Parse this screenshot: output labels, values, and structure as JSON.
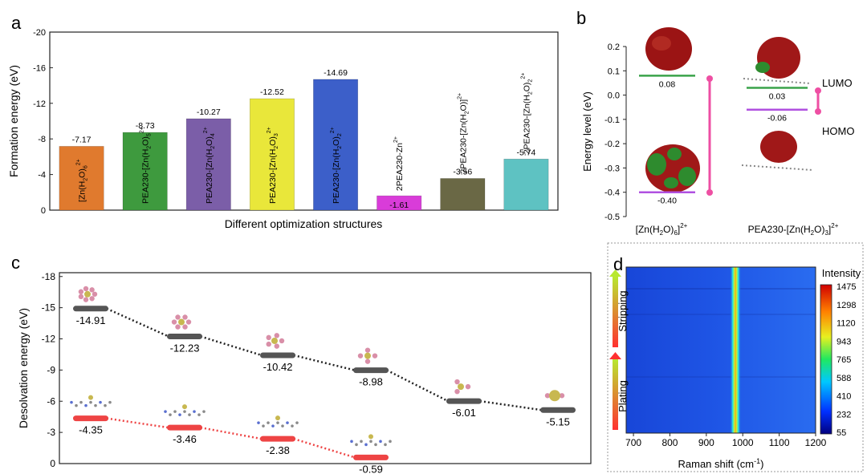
{
  "chart_data": [
    {
      "panel": "a",
      "type": "bar",
      "xlabel": "Different optimization structures",
      "ylabel": "Formation energy (eV)",
      "ylim": [
        0,
        -20
      ],
      "yticks": [
        "0",
        "-4",
        "-8",
        "-12",
        "-16",
        "-20"
      ],
      "ytick_values": [
        0,
        -4,
        -8,
        -12,
        -16,
        -20
      ],
      "categories": [
        {
          "main": "[Zn(H",
          "sub1": "2",
          "mid": "O)",
          "sub2": "6",
          "sup": "2+"
        },
        {
          "main": "PEA230-[Zn(H",
          "sub1": "2",
          "mid": "O)",
          "sub2": "5",
          "sup": "2+"
        },
        {
          "main": "PEA230-[Zn(H",
          "sub1": "2",
          "mid": "O)",
          "sub2": "4",
          "sup": "2+"
        },
        {
          "main": "PEA230-[Zn(H",
          "sub1": "2",
          "mid": "O)",
          "sub2": "3",
          "sup": "2+"
        },
        {
          "main": "PEA230-[Zn(H",
          "sub1": "2",
          "mid": "O)",
          "sub2": "2",
          "sup": "2+"
        },
        {
          "main": "2PEA230-Zn",
          "sub1": "",
          "mid": "",
          "sub2": "",
          "sup": "2+"
        },
        {
          "main": "2PEA230-[Zn(H",
          "sub1": "2",
          "mid": "O)]",
          "sub2": "",
          "sup": "2+"
        },
        {
          "main": "2PEA230-[Zn(H",
          "sub1": "2",
          "mid": "O)",
          "sub2": "2",
          "sup": "2+"
        }
      ],
      "values": [
        -7.17,
        -8.73,
        -10.27,
        -12.52,
        -14.69,
        -1.61,
        -3.56,
        -5.74
      ],
      "value_labels": [
        "-7.17",
        "-8.73",
        "-10.27",
        "-12.52",
        "-14.69",
        "-1.61",
        "-3.56",
        "-5.74"
      ],
      "colors": [
        "#e07a2e",
        "#3e9a3e",
        "#7b5ea8",
        "#e9e73a",
        "#3c5fc9",
        "#d93cd9",
        "#6a6845",
        "#5ec2c2"
      ]
    },
    {
      "panel": "b",
      "type": "energy-level",
      "ylabel": "Energy level (eV)",
      "ylim": [
        -0.5,
        0.2
      ],
      "yticks": [
        "-0.5",
        "-0.4",
        "-0.3",
        "-0.2",
        "-0.1",
        "0.0",
        "0.1",
        "0.2"
      ],
      "ytick_values": [
        -0.5,
        -0.4,
        -0.3,
        -0.2,
        -0.1,
        0.0,
        0.1,
        0.2
      ],
      "structures": [
        {
          "label": {
            "main": "[Zn(H",
            "sub1": "2",
            "mid": "O)",
            "sub2": "6",
            "tail": "]",
            "sup": "2+"
          },
          "lumo": 0.08,
          "homo": -0.4,
          "lumo_label": "0.08",
          "homo_label": "-0.40"
        },
        {
          "label": {
            "main": "PEA230-[Zn(H",
            "sub1": "2",
            "mid": "O)",
            "sub2": "3",
            "tail": "]",
            "sup": "2+"
          },
          "lumo": 0.03,
          "homo": -0.06,
          "lumo_label": "0.03",
          "homo_label": "-0.06"
        }
      ],
      "legend": {
        "lumo": "LUMO",
        "homo": "HOMO"
      },
      "colors": {
        "lumo": "#3aa34a",
        "homo": "#b050e0",
        "gap": "#ee4fa3"
      }
    },
    {
      "panel": "c",
      "type": "line",
      "ylabel": "Desolvation energy (eV)",
      "ylim": [
        0,
        -18
      ],
      "yticks": [
        "0",
        "-3",
        "-6",
        "-9",
        "-12",
        "-15",
        "-18"
      ],
      "ytick_values": [
        0,
        -3,
        -6,
        -9,
        -12,
        -15,
        -18
      ],
      "series": [
        {
          "values": [
            -14.91,
            -12.23,
            -10.42,
            -8.98,
            -6.01,
            -5.15
          ],
          "labels": [
            "-14.91",
            "-12.23",
            "-10.42",
            "-8.98",
            "-6.01",
            "-5.15"
          ],
          "color": "#555555",
          "line_color": "#222222"
        },
        {
          "values": [
            -4.35,
            -3.46,
            -2.38,
            -0.59
          ],
          "labels": [
            "-4.35",
            "-3.46",
            "-2.38",
            "-0.59"
          ],
          "color": "#ee4444",
          "line_color": "#ee4444"
        }
      ]
    },
    {
      "panel": "d",
      "type": "heatmap",
      "xlabel": "Raman shift (cm",
      "xlabel_sup": "-1",
      "xlabel_tail": ")",
      "xlim": [
        680,
        1200
      ],
      "xticks": [
        "700",
        "800",
        "900",
        "1000",
        "1100",
        "1200"
      ],
      "xtick_values": [
        700,
        800,
        900,
        1000,
        1100,
        1200
      ],
      "peak_x": 980,
      "colorbar_title": "Intensity",
      "colorbar_ticks": [
        "1475",
        "1298",
        "1120",
        "943",
        "765",
        "588",
        "410",
        "232",
        "55"
      ],
      "side_labels": {
        "top": "Stripping",
        "bottom": "Plating"
      }
    }
  ],
  "panel_letters": [
    "a",
    "b",
    "c",
    "d"
  ]
}
